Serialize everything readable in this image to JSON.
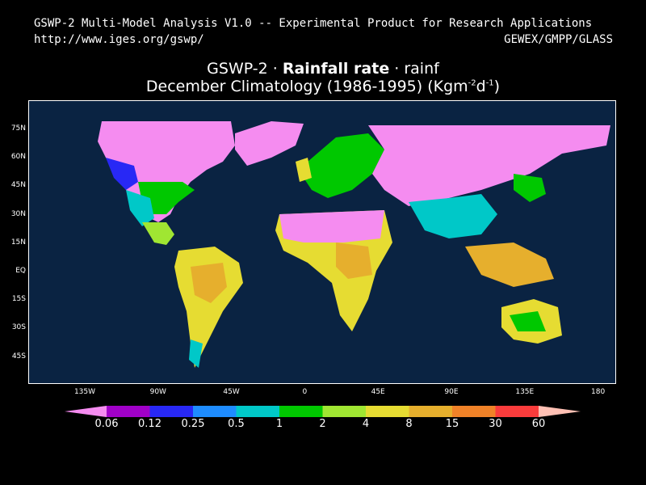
{
  "header": {
    "line1_left": "GSWP-2 Multi-Model Analysis V1.0 -- Experimental Product for Research Applications",
    "line2_left": "http://www.iges.org/gswp/",
    "line2_right": "GEWEX/GMPP/GLASS"
  },
  "title": {
    "prefix": "GSWP-2 · ",
    "variable": "Rainfall rate",
    "suffix": " · rainf",
    "line2_main": "December Climatology (1986-1995) (Kgm",
    "unit_exp1": "-2",
    "unit_mid": "d",
    "unit_exp2": "-1",
    "unit_close": ")"
  },
  "map": {
    "ocean_color": "#0a2342",
    "y_ticks": [
      "75N",
      "60N",
      "45N",
      "30N",
      "15N",
      "EQ",
      "15S",
      "30S",
      "45S"
    ],
    "x_ticks": [
      "135W",
      "90W",
      "45W",
      "0",
      "45E",
      "90E",
      "135E",
      "180"
    ]
  },
  "colorbar": {
    "colors": [
      "#f58cf0",
      "#a000c8",
      "#2828f5",
      "#1e8cff",
      "#00c8c8",
      "#00c800",
      "#a0e632",
      "#e6dc32",
      "#e6af2d",
      "#f08228",
      "#fa3c3c",
      "#ffc0b4"
    ],
    "labels": [
      "0.06",
      "0.12",
      "0.25",
      "0.5",
      "1",
      "2",
      "4",
      "8",
      "15",
      "30",
      "60"
    ]
  }
}
